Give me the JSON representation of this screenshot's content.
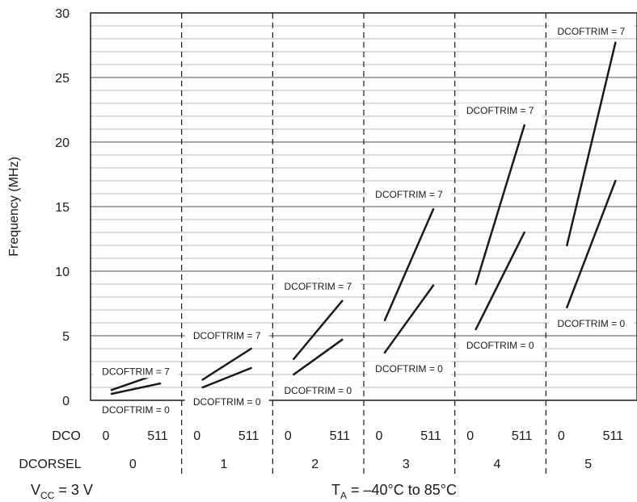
{
  "chart_data": {
    "type": "line",
    "ylabel": "Frequency (MHz)",
    "ylim": [
      0,
      30
    ],
    "y_ticks": [
      "0",
      "5",
      "10",
      "15",
      "20",
      "25",
      "30"
    ],
    "grid": true,
    "row_labels": {
      "dco": "DCO",
      "dcorsel": "DCORSEL"
    },
    "dco_values": [
      "0",
      "511"
    ],
    "groups": [
      {
        "dcorsel": "0",
        "series": [
          {
            "name": "DCOFTRIM = 7",
            "x": [
              0,
              511
            ],
            "y": [
              0.8,
              2.1
            ]
          },
          {
            "name": "DCOFTRIM = 0",
            "x": [
              0,
              511
            ],
            "y": [
              0.5,
              1.3
            ]
          }
        ]
      },
      {
        "dcorsel": "1",
        "series": [
          {
            "name": "DCOFTRIM = 7",
            "x": [
              0,
              511
            ],
            "y": [
              1.6,
              4.0
            ]
          },
          {
            "name": "DCOFTRIM = 0",
            "x": [
              0,
              511
            ],
            "y": [
              1.0,
              2.5
            ]
          }
        ]
      },
      {
        "dcorsel": "2",
        "series": [
          {
            "name": "DCOFTRIM = 7",
            "x": [
              0,
              511
            ],
            "y": [
              3.2,
              7.7
            ]
          },
          {
            "name": "DCOFTRIM = 0",
            "x": [
              0,
              511
            ],
            "y": [
              2.0,
              4.7
            ]
          }
        ]
      },
      {
        "dcorsel": "3",
        "series": [
          {
            "name": "DCOFTRIM = 7",
            "x": [
              0,
              511
            ],
            "y": [
              6.2,
              14.8
            ]
          },
          {
            "name": "DCOFTRIM = 0",
            "x": [
              0,
              511
            ],
            "y": [
              3.7,
              8.9
            ]
          }
        ]
      },
      {
        "dcorsel": "4",
        "series": [
          {
            "name": "DCOFTRIM = 7",
            "x": [
              0,
              511
            ],
            "y": [
              9.0,
              21.3
            ]
          },
          {
            "name": "DCOFTRIM = 0",
            "x": [
              0,
              511
            ],
            "y": [
              5.5,
              13.0
            ]
          }
        ]
      },
      {
        "dcorsel": "5",
        "series": [
          {
            "name": "DCOFTRIM = 7",
            "x": [
              0,
              511
            ],
            "y": [
              12.0,
              27.7
            ]
          },
          {
            "name": "DCOFTRIM = 0",
            "x": [
              0,
              511
            ],
            "y": [
              7.2,
              17.0
            ]
          }
        ]
      }
    ],
    "conditions": {
      "vcc": {
        "main": "V",
        "sub": "CC",
        "rest": " = 3 V"
      },
      "ta": {
        "main": "T",
        "sub": "A",
        "rest": " = –40°C to 85°C"
      }
    }
  }
}
